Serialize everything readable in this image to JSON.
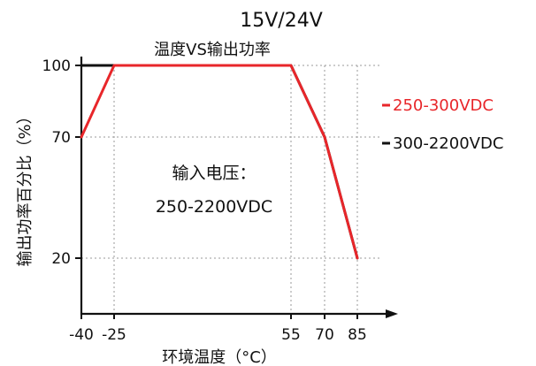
{
  "header": {
    "title": "15V/24V",
    "subtitle": "温度VS输出功率"
  },
  "annotation": {
    "line1": "输入电压：",
    "line2": "250-2200VDC"
  },
  "chart_data": {
    "type": "line",
    "title": "15V/24V",
    "subtitle": "温度VS输出功率",
    "xlabel": "环境温度（°C）",
    "ylabel": "输出功率百分比（%）",
    "xlim": [
      -40,
      100
    ],
    "ylim": [
      0,
      100
    ],
    "x_ticks": [
      -40,
      -25,
      55,
      70,
      85
    ],
    "x_tick_labels": [
      "-40",
      "-25",
      "55",
      "70",
      "85"
    ],
    "y_ticks": [
      20,
      70,
      100
    ],
    "y_tick_labels": [
      "20",
      "70",
      "100"
    ],
    "grid": true,
    "legend_position": "right",
    "series": [
      {
        "name": "250-300VDC",
        "color": "#e8262a",
        "x": [
          -40,
          -25,
          55,
          70,
          85
        ],
        "y": [
          70,
          100,
          100,
          70,
          20
        ]
      },
      {
        "name": "300-2200VDC",
        "color": "#111111",
        "x": [
          -40,
          -25,
          55,
          70,
          85
        ],
        "y": [
          100,
          100,
          100,
          70,
          20
        ]
      }
    ]
  }
}
